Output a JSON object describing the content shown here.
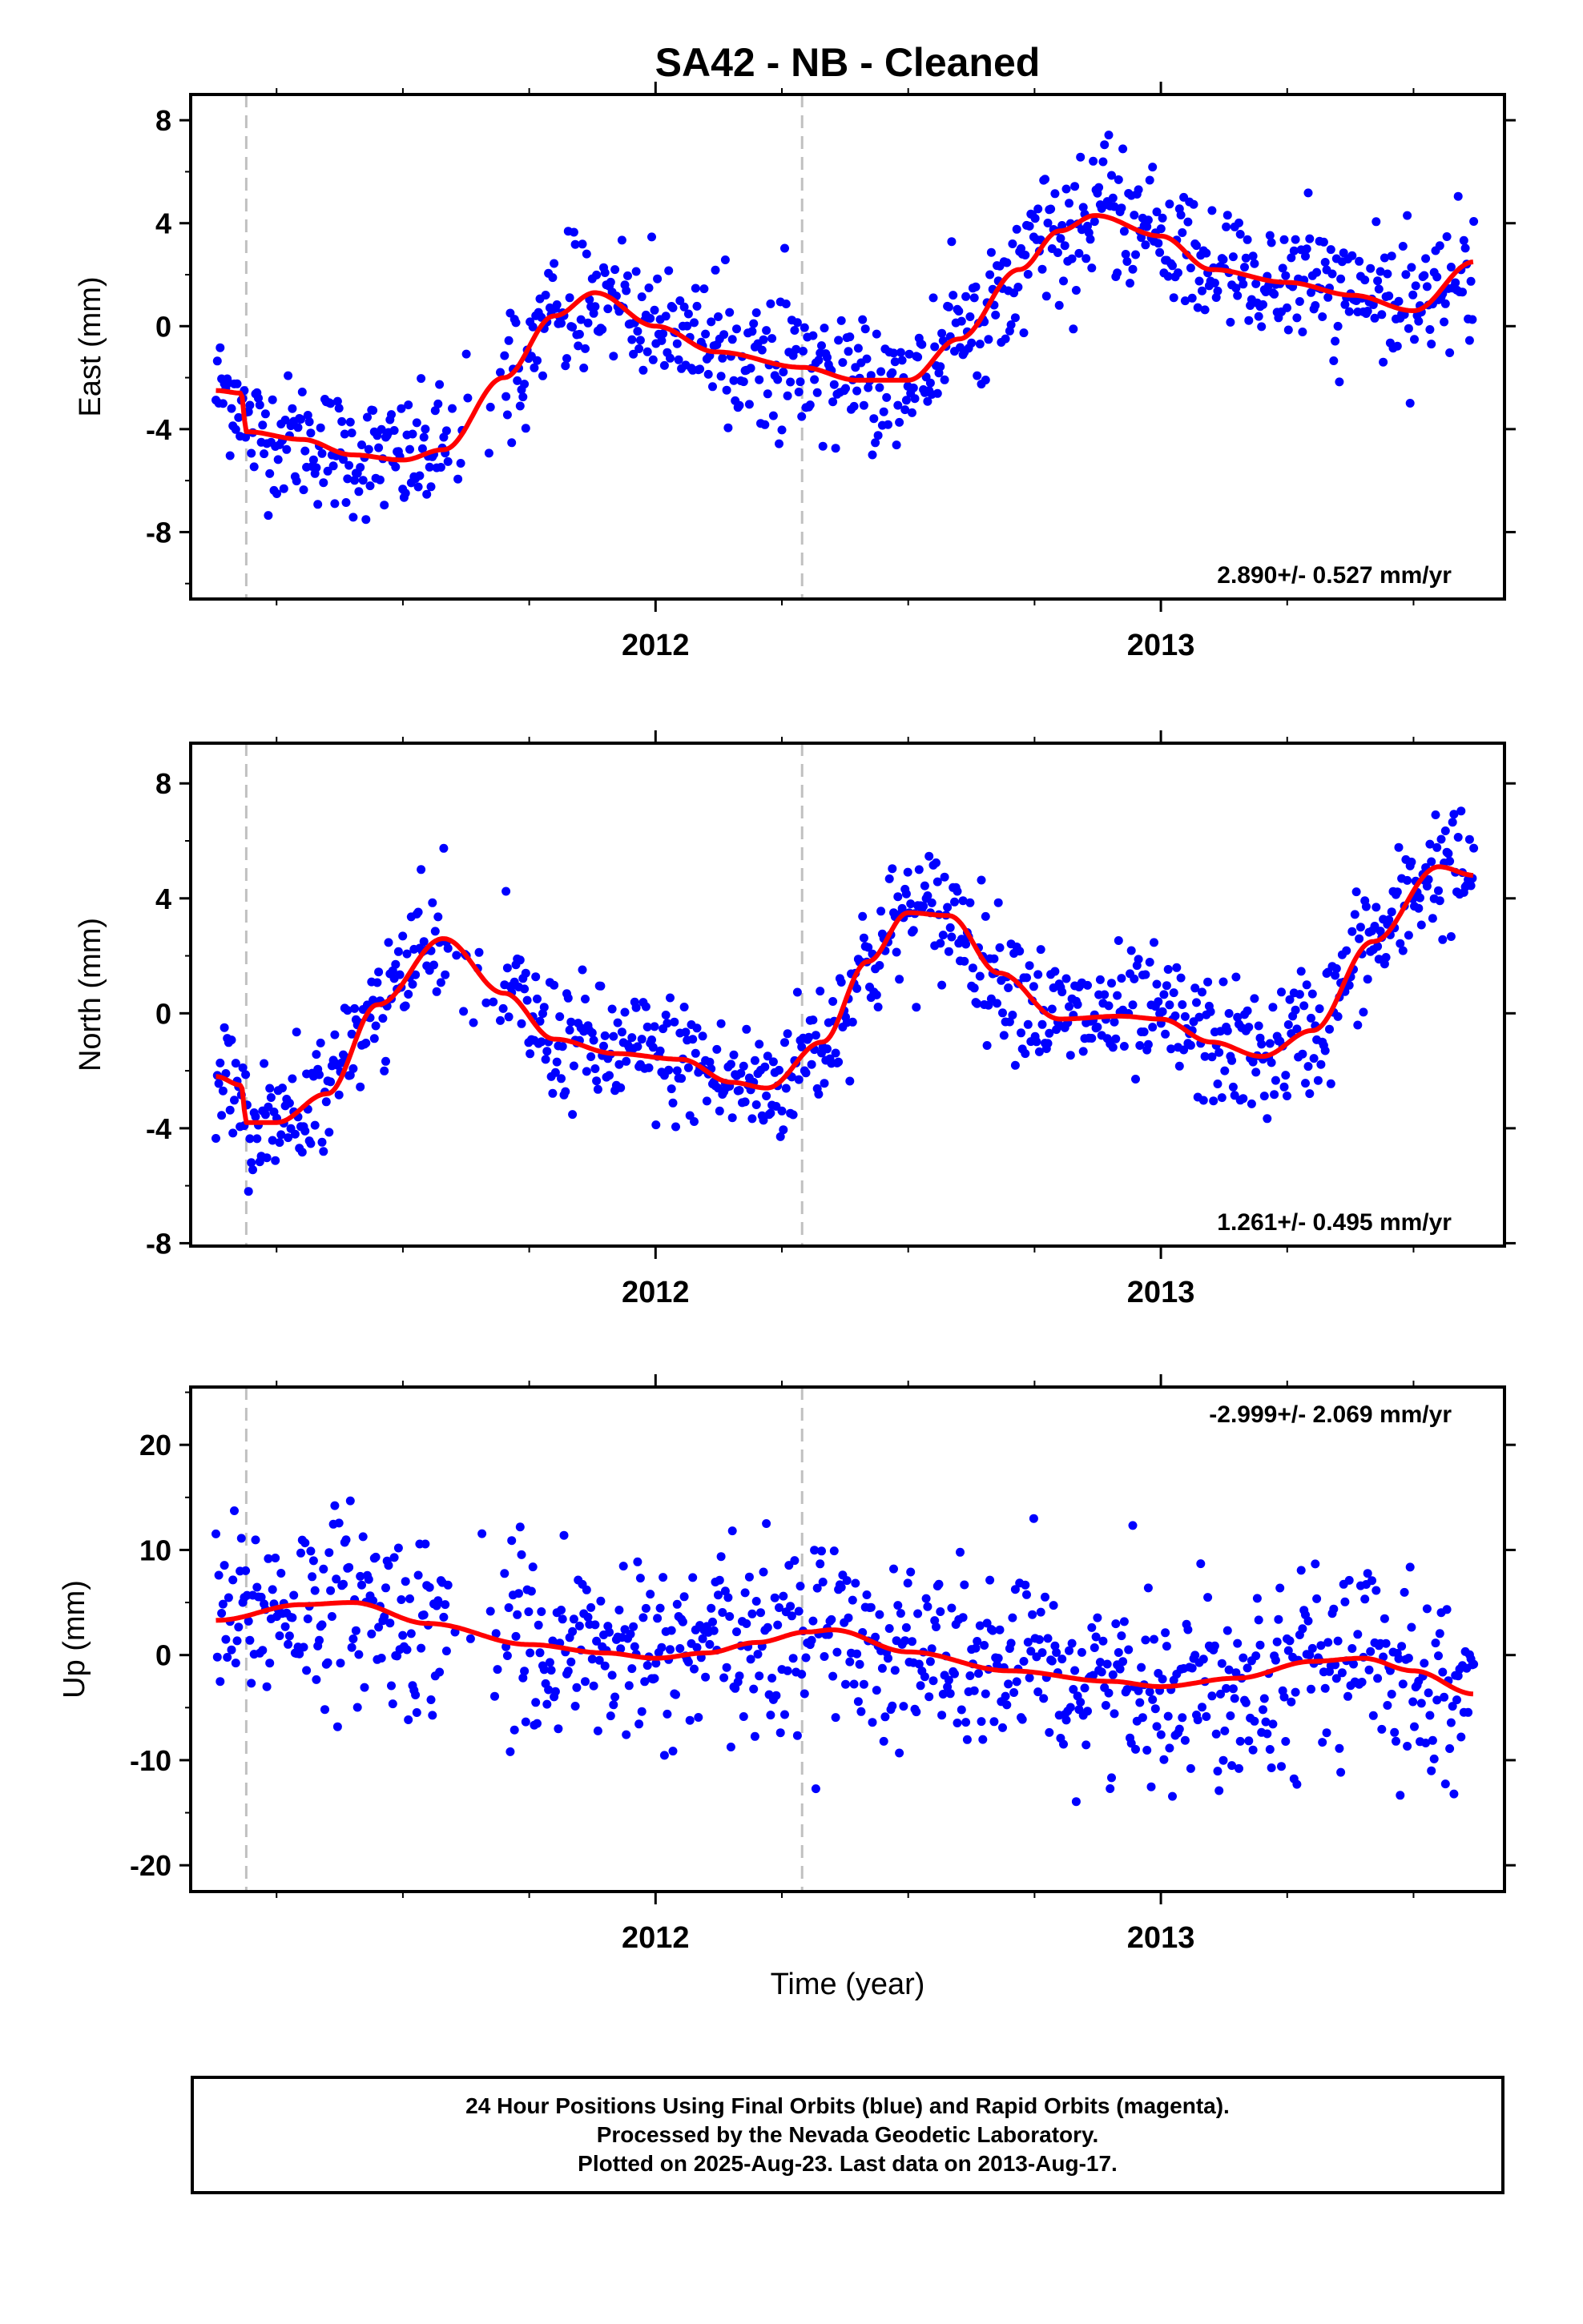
{
  "title": "SA42  - NB - Cleaned",
  "xlabel": "Time (year)",
  "xlim": [
    2011.08,
    2013.68
  ],
  "x_tick_labels": [
    "2012",
    "2013"
  ],
  "x_ticks": [
    2012,
    2013
  ],
  "x_minor_ticks": [
    2011.25,
    2011.5,
    2011.75,
    2012.25,
    2012.5,
    2012.75,
    2013.25,
    2013.5
  ],
  "event_lines": [
    2011.19,
    2012.29
  ],
  "colors": {
    "points": "#0000ff",
    "fit": "#ff0000",
    "event_line": "#c0c0c0",
    "frame": "#000000"
  },
  "footer": {
    "line1": "24 Hour Positions Using Final Orbits (blue) and Rapid Orbits (magenta).",
    "line2": "Processed by the Nevada Geodetic Laboratory.",
    "line3": "Plotted on 2025-Aug-23. Last data on 2013-Aug-17."
  },
  "chart_data": [
    {
      "type": "scatter",
      "ylabel": "East (mm)",
      "ylim": [
        -10.6,
        9.0
      ],
      "y_ticks": [
        -8,
        -4,
        0,
        4,
        8
      ],
      "y_tick_labels": [
        "-8",
        "-4",
        "0",
        "4",
        "8"
      ],
      "rate_label": "2.890+/- 0.527 mm/yr",
      "fit_x": [
        2011.13,
        2011.18,
        2011.19,
        2011.3,
        2011.4,
        2011.5,
        2011.58,
        2011.7,
        2011.8,
        2011.88,
        2012.0,
        2012.12,
        2012.29,
        2012.4,
        2012.5,
        2012.6,
        2012.72,
        2012.8,
        2012.87,
        2013.0,
        2013.1,
        2013.25,
        2013.38,
        2013.5,
        2013.62
      ],
      "fit_y": [
        -2.5,
        -2.6,
        -4.1,
        -4.4,
        -5.0,
        -5.2,
        -4.8,
        -2.0,
        0.4,
        1.3,
        0.0,
        -1.0,
        -1.6,
        -2.1,
        -2.1,
        -0.5,
        2.2,
        3.7,
        4.3,
        3.5,
        2.2,
        1.7,
        1.2,
        0.6,
        2.5
      ],
      "noise": 1.6
    },
    {
      "type": "scatter",
      "ylabel": "North (mm)",
      "ylim": [
        -8.1,
        9.4
      ],
      "y_ticks": [
        -8,
        -4,
        0,
        4,
        8
      ],
      "y_tick_labels": [
        "-8",
        "-4",
        "0",
        "4",
        "8"
      ],
      "rate_label": "1.261+/- 0.495 mm/yr",
      "fit_x": [
        2011.13,
        2011.18,
        2011.19,
        2011.25,
        2011.35,
        2011.45,
        2011.58,
        2011.7,
        2011.8,
        2011.92,
        2012.05,
        2012.15,
        2012.22,
        2012.33,
        2012.42,
        2012.5,
        2012.58,
        2012.68,
        2012.8,
        2012.92,
        2013.0,
        2013.1,
        2013.2,
        2013.3,
        2013.42,
        2013.55,
        2013.62
      ],
      "fit_y": [
        -2.2,
        -2.5,
        -3.8,
        -3.8,
        -2.8,
        0.3,
        2.6,
        0.7,
        -0.9,
        -1.4,
        -1.6,
        -2.4,
        -2.6,
        -1.0,
        1.8,
        3.5,
        3.4,
        1.4,
        -0.2,
        -0.1,
        -0.2,
        -1.0,
        -1.5,
        -0.6,
        2.5,
        5.1,
        4.8
      ],
      "noise": 1.5
    },
    {
      "type": "scatter",
      "ylabel": "Up (mm)",
      "ylim": [
        -22.5,
        25.5
      ],
      "y_ticks": [
        -20,
        -10,
        0,
        10,
        20
      ],
      "y_tick_labels": [
        "-20",
        "-10",
        "0",
        "10",
        "20"
      ],
      "rate_label": "-2.999+/- 2.069 mm/yr",
      "fit_x": [
        2011.13,
        2011.3,
        2011.4,
        2011.55,
        2011.75,
        2011.9,
        2012.0,
        2012.1,
        2012.2,
        2012.3,
        2012.35,
        2012.5,
        2012.7,
        2012.9,
        2013.0,
        2013.15,
        2013.3,
        2013.4,
        2013.5,
        2013.62
      ],
      "fit_y": [
        3.3,
        4.8,
        5.0,
        3.0,
        1.0,
        0.2,
        -0.3,
        0.2,
        1.2,
        2.2,
        2.4,
        0.3,
        -1.5,
        -2.5,
        -3.0,
        -2.2,
        -0.6,
        -0.3,
        -1.5,
        -3.7
      ],
      "noise": 6.0
    }
  ]
}
